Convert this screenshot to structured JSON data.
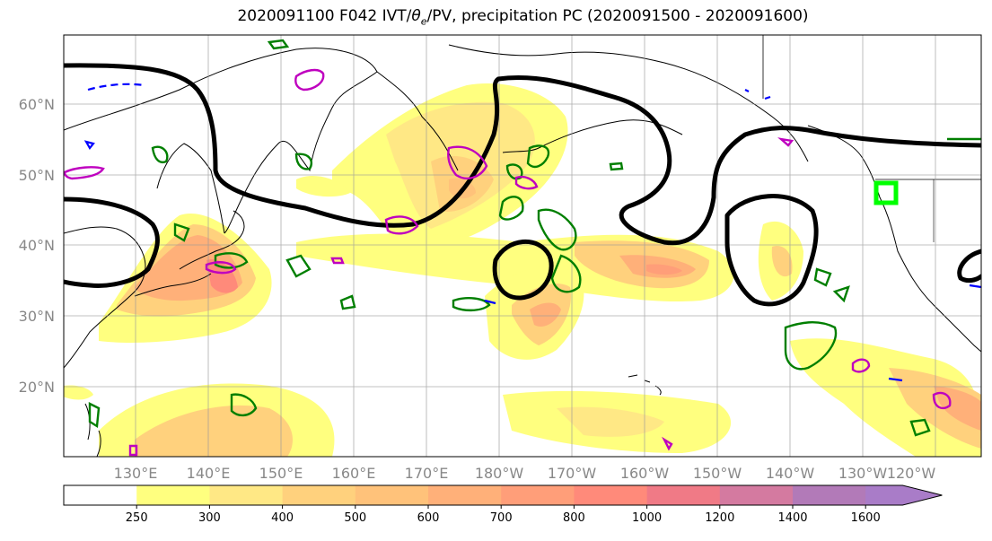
{
  "title_main": "2020091100 F042 IVT/",
  "title_theta": "θ",
  "title_sub": "e",
  "title_rest": "/PV, precipitation PC (2020091500 - 2020091600)",
  "lat_labels": [
    "60°N",
    "50°N",
    "40°N",
    "30°N",
    "20°N"
  ],
  "lon_labels": [
    "130°E",
    "140°E",
    "150°E",
    "160°E",
    "170°E",
    "180°W",
    "170°W",
    "160°W",
    "150°W",
    "140°W",
    "130°W",
    "120°W"
  ],
  "colorbar": {
    "ticks": [
      "250",
      "300",
      "400",
      "500",
      "600",
      "700",
      "800",
      "1000",
      "1200",
      "1400",
      "1600"
    ],
    "colors": [
      "#ffffff",
      "#ffff7f",
      "#ffe885",
      "#ffd17d",
      "#ffc27a",
      "#ffb079",
      "#ff9e79",
      "#ff8a7a",
      "#f07a86",
      "#d47aa0",
      "#b27ab8",
      "#a97cc8"
    ]
  },
  "colors": {
    "land_outline": "#000000",
    "theta_e_contour": "#000000",
    "pv_contour_green": "#007f00",
    "pv_contour_magenta": "#bf00bf",
    "blue_dashed": "#0000ff",
    "target_box": "#00ff00"
  }
}
